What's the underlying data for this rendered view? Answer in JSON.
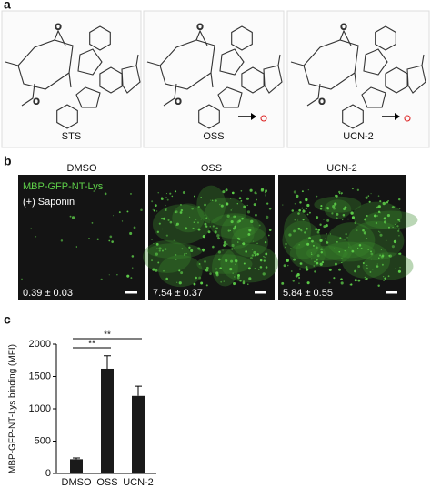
{
  "panel_a": {
    "label": "a",
    "compounds": [
      "STS",
      "OSS",
      "UCN-2"
    ]
  },
  "panel_b": {
    "label": "b",
    "columns": [
      "DMSO",
      "OSS",
      "UCN-2"
    ],
    "stain": "MBP-GFP-NT-Lys",
    "condition": "(+) Saponin",
    "values": [
      "0.39 ± 0.03",
      "7.54 ± 0.37",
      "5.84 ± 0.55"
    ]
  },
  "panel_c_label": "c",
  "chart_data": {
    "type": "bar",
    "ylabel": "MBP-GFP-NT-Lys binding (MFI)",
    "categories": [
      "DMSO",
      "OSS",
      "UCN-2"
    ],
    "values": [
      220,
      1620,
      1200
    ],
    "errors": [
      20,
      200,
      150
    ],
    "color": "#1a1a1a",
    "ylim": [
      0,
      2000
    ],
    "yticks": [
      0,
      500,
      1000,
      1500,
      2000
    ],
    "annotations": [
      "**",
      "**"
    ]
  }
}
